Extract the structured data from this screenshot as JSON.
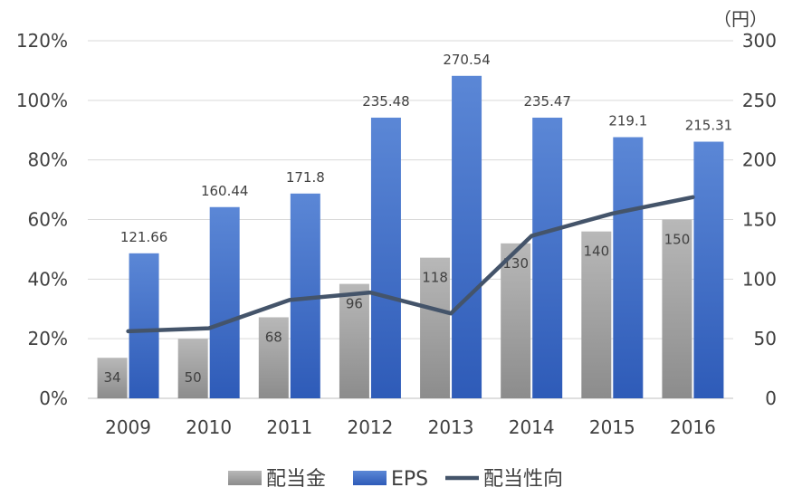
{
  "chart_data": {
    "type": "bar",
    "categories": [
      "2009",
      "2010",
      "2011",
      "2012",
      "2013",
      "2014",
      "2015",
      "2016"
    ],
    "series": [
      {
        "name": "配当金",
        "kind": "bar",
        "axis": "right",
        "color": "#a6a6a6",
        "values": [
          34,
          50,
          68,
          96,
          118,
          130,
          140,
          150
        ],
        "labels": [
          "34",
          "50",
          "68",
          "96",
          "118",
          "130",
          "140",
          "150"
        ]
      },
      {
        "name": "EPS",
        "kind": "bar",
        "axis": "right",
        "color": "#4472c4",
        "values": [
          121.66,
          160.44,
          171.8,
          235.48,
          270.54,
          235.47,
          219.1,
          215.31
        ],
        "labels": [
          "121.66",
          "160.44",
          "171.8",
          "235.48",
          "270.54",
          "235.47",
          "219.1",
          "215.31"
        ]
      },
      {
        "name": "配当性向",
        "kind": "line",
        "axis": "left",
        "color": "#44546a",
        "values": [
          22.5,
          23.5,
          33,
          35.5,
          28.5,
          54.5,
          62,
          67.5
        ]
      }
    ],
    "y_left": {
      "ylim": [
        0,
        120
      ],
      "ticks": [
        0,
        20,
        40,
        60,
        80,
        100,
        120
      ],
      "tick_labels": [
        "0%",
        "20%",
        "40%",
        "60%",
        "80%",
        "100%",
        "120%"
      ]
    },
    "y_right": {
      "ylim": [
        0,
        300
      ],
      "ticks": [
        0,
        50,
        100,
        150,
        200,
        250,
        300
      ],
      "tick_labels": [
        "0",
        "50",
        "100",
        "150",
        "200",
        "250",
        "300"
      ],
      "unit": "（円）"
    },
    "grid": true,
    "legend": "bottom"
  }
}
